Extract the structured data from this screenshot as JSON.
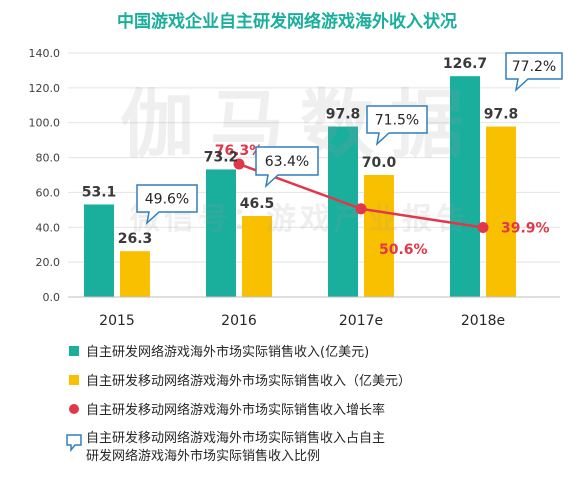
{
  "chart_data": {
    "type": "bar",
    "title": "中国游戏企业自主研发网络游戏海外收入状况",
    "categories": [
      "2015",
      "2016",
      "2017e",
      "2018e"
    ],
    "ylim": [
      0,
      140
    ],
    "yticks": [
      "0.0",
      "20.0",
      "40.0",
      "60.0",
      "80.0",
      "100.0",
      "120.0",
      "140.0"
    ],
    "series": [
      {
        "name": "自主研发网络游戏海外市场实际销售收入(亿美元)",
        "kind": "bar",
        "color": "#1aaf9c",
        "values": [
          53.1,
          73.2,
          97.8,
          126.7
        ],
        "labels": [
          "53.1",
          "73.2",
          "97.8",
          "126.7"
        ]
      },
      {
        "name": "自主研发移动网络游戏海外市场实际销售收入（亿美元）",
        "kind": "bar",
        "color": "#f9c000",
        "values": [
          26.3,
          46.5,
          70.0,
          97.8
        ],
        "labels": [
          "26.3",
          "46.5",
          "70.0",
          "97.8"
        ]
      },
      {
        "name": "自主研发移动网络游戏海外市场实际销售收入增长率",
        "kind": "line",
        "color": "#e0374a",
        "values": [
          null,
          76.3,
          50.6,
          39.9
        ],
        "labels": [
          "",
          "76.3%",
          "50.6%",
          "39.9%"
        ]
      },
      {
        "name": "自主研发移动网络游戏海外市场实际销售收入占自主研发网络游戏海外市场实际销售收入比例",
        "kind": "callout",
        "color": "#2e7fc0",
        "values": [
          49.6,
          63.4,
          71.5,
          77.2
        ],
        "labels": [
          "49.6%",
          "63.4%",
          "71.5%",
          "77.2%"
        ]
      }
    ],
    "legend": {
      "placement": "bottom",
      "line4a": "自主研发移动网络游戏海外市场实际销售收入占自主",
      "line4b": "研发网络游戏海外市场实际销售收入比例"
    },
    "watermark": {
      "main": "伽马数据",
      "sub": "微信号：游戏产业报告"
    },
    "grid": true
  }
}
